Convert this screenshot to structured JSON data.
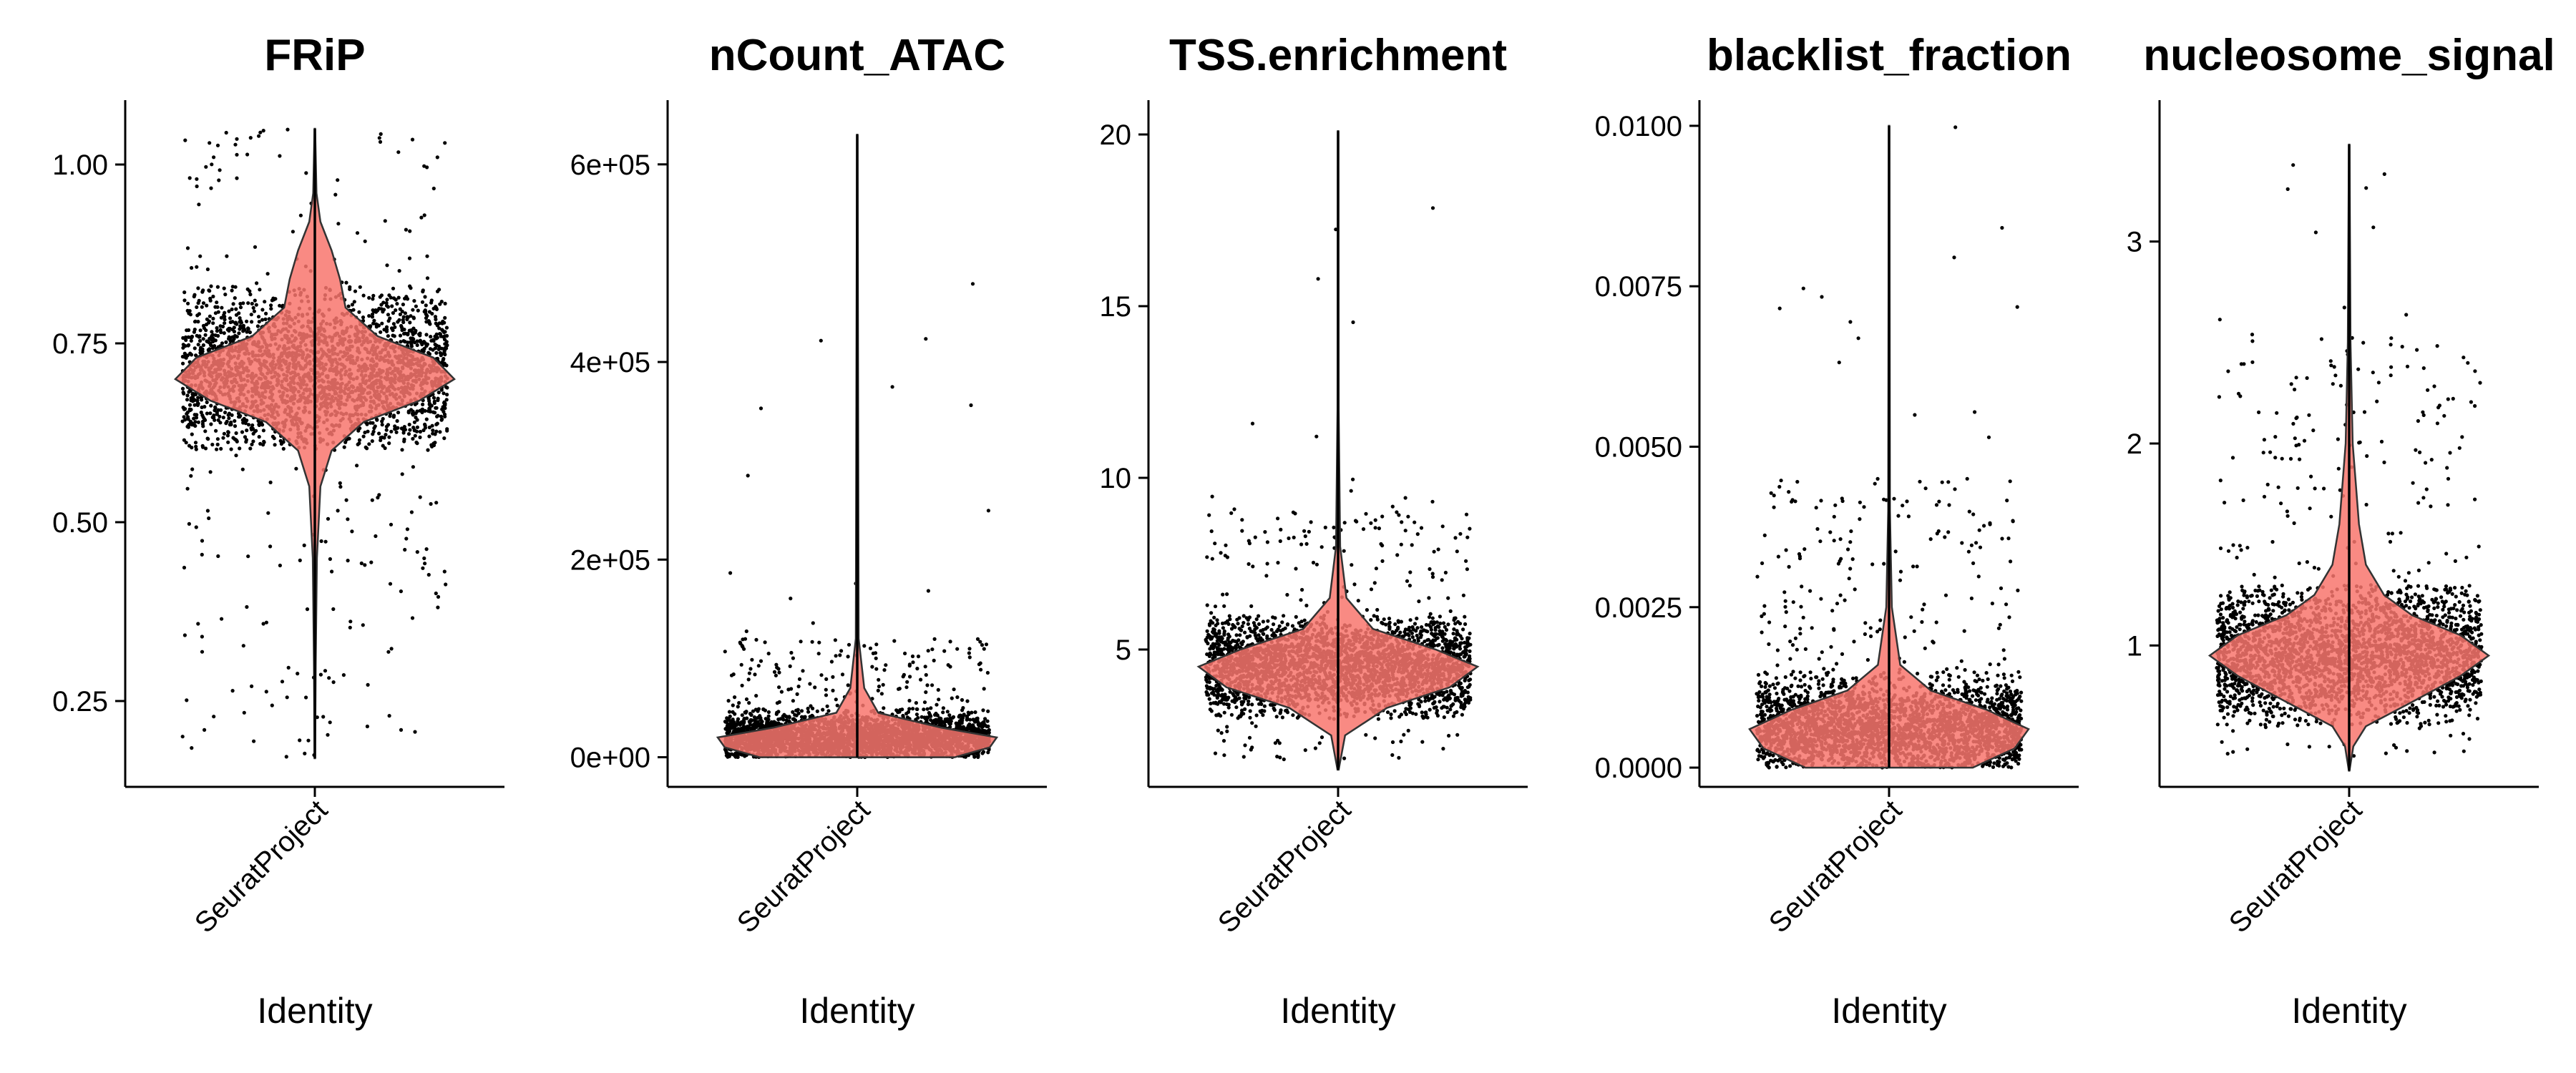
{
  "figure": {
    "background": "#ffffff",
    "violin_color": "#f8766d"
  },
  "chart_data": [
    {
      "type": "violin",
      "title": "FRiP",
      "xlabel": "Identity",
      "categories": [
        "SeuratProject"
      ],
      "ylim": [
        0.13,
        1.09
      ],
      "yticks": [
        {
          "value": 0.25,
          "label": "0.25"
        },
        {
          "value": 0.5,
          "label": "0.50"
        },
        {
          "value": 0.75,
          "label": "0.75"
        },
        {
          "value": 1.0,
          "label": "1.00"
        }
      ],
      "distribution": {
        "min": 0.17,
        "max": 1.05,
        "mode": 0.71,
        "core_low": 0.6,
        "core_high": 0.83,
        "tail_low": 0.17,
        "tail_high": 1.03
      },
      "violin_profile": [
        [
          0.17,
          0.002
        ],
        [
          0.3,
          0.006
        ],
        [
          0.45,
          0.015
        ],
        [
          0.55,
          0.04
        ],
        [
          0.6,
          0.12
        ],
        [
          0.64,
          0.35
        ],
        [
          0.67,
          0.75
        ],
        [
          0.7,
          1.0
        ],
        [
          0.73,
          0.85
        ],
        [
          0.76,
          0.45
        ],
        [
          0.8,
          0.22
        ],
        [
          0.84,
          0.18
        ],
        [
          0.88,
          0.12
        ],
        [
          0.92,
          0.04
        ],
        [
          0.96,
          0.012
        ],
        [
          1.05,
          0.002
        ]
      ]
    },
    {
      "type": "violin",
      "title": "nCount_ATAC",
      "xlabel": "Identity",
      "categories": [
        "SeuratProject"
      ],
      "ylim": [
        -30000,
        665000
      ],
      "yticks": [
        {
          "value": 0,
          "label": "0e+00"
        },
        {
          "value": 200000,
          "label": "2e+05"
        },
        {
          "value": 400000,
          "label": "4e+05"
        },
        {
          "value": 600000,
          "label": "6e+05"
        }
      ],
      "distribution": {
        "min": 0,
        "max": 630000,
        "mode": 20000,
        "core_low": 0,
        "core_high": 50000,
        "tail_low": 0,
        "tail_high": 120000
      },
      "violin_profile": [
        [
          0,
          0.7
        ],
        [
          10000,
          0.95
        ],
        [
          20000,
          1.0
        ],
        [
          30000,
          0.6
        ],
        [
          45000,
          0.15
        ],
        [
          70000,
          0.05
        ],
        [
          120000,
          0.01
        ],
        [
          630000,
          0.002
        ]
      ]
    },
    {
      "type": "violin",
      "title": "TSS.enrichment",
      "xlabel": "Identity",
      "categories": [
        "SeuratProject"
      ],
      "ylim": [
        1.0,
        21.0
      ],
      "yticks": [
        {
          "value": 5,
          "label": "5"
        },
        {
          "value": 10,
          "label": "10"
        },
        {
          "value": 15,
          "label": "15"
        },
        {
          "value": 20,
          "label": "20"
        }
      ],
      "distribution": {
        "min": 1.5,
        "max": 20.1,
        "mode": 4.5,
        "core_low": 3.0,
        "core_high": 6.0,
        "tail_low": 1.8,
        "tail_high": 9.0
      },
      "violin_profile": [
        [
          1.5,
          0.004
        ],
        [
          2.5,
          0.05
        ],
        [
          3.3,
          0.35
        ],
        [
          3.9,
          0.8
        ],
        [
          4.5,
          1.0
        ],
        [
          5.0,
          0.7
        ],
        [
          5.6,
          0.25
        ],
        [
          6.5,
          0.06
        ],
        [
          8,
          0.015
        ],
        [
          12,
          0.004
        ],
        [
          20.1,
          0.002
        ]
      ]
    },
    {
      "type": "violin",
      "title": "blacklist_fraction",
      "xlabel": "Identity",
      "categories": [
        "SeuratProject"
      ],
      "ylim": [
        -0.0003,
        0.0104
      ],
      "yticks": [
        {
          "value": 0,
          "label": "0.0000"
        },
        {
          "value": 0.0025,
          "label": "0.0025"
        },
        {
          "value": 0.005,
          "label": "0.0050"
        },
        {
          "value": 0.0075,
          "label": "0.0075"
        },
        {
          "value": 0.01,
          "label": "0.0100"
        }
      ],
      "distribution": {
        "min": 0,
        "max": 0.01,
        "mode": 0.0006,
        "core_low": 0,
        "core_high": 0.0015,
        "tail_low": 0,
        "tail_high": 0.0045
      },
      "violin_profile": [
        [
          0,
          0.6
        ],
        [
          0.0003,
          0.9
        ],
        [
          0.0006,
          1.0
        ],
        [
          0.0009,
          0.7
        ],
        [
          0.0012,
          0.3
        ],
        [
          0.0016,
          0.08
        ],
        [
          0.0025,
          0.02
        ],
        [
          0.004,
          0.006
        ],
        [
          0.01,
          0.002
        ]
      ]
    },
    {
      "type": "violin",
      "title": "nucleosome_signal",
      "xlabel": "Identity",
      "categories": [
        "SeuratProject"
      ],
      "ylim": [
        0.3,
        3.7
      ],
      "yticks": [
        {
          "value": 1,
          "label": "1"
        },
        {
          "value": 2,
          "label": "2"
        },
        {
          "value": 3,
          "label": "3"
        }
      ],
      "distribution": {
        "min": 0.38,
        "max": 3.48,
        "mode": 0.95,
        "core_low": 0.6,
        "core_high": 1.3,
        "tail_low": 0.45,
        "tail_high": 2.5
      },
      "violin_profile": [
        [
          0.38,
          0.002
        ],
        [
          0.5,
          0.03
        ],
        [
          0.6,
          0.12
        ],
        [
          0.72,
          0.45
        ],
        [
          0.85,
          0.8
        ],
        [
          0.95,
          1.0
        ],
        [
          1.05,
          0.8
        ],
        [
          1.15,
          0.45
        ],
        [
          1.25,
          0.25
        ],
        [
          1.4,
          0.12
        ],
        [
          1.6,
          0.07
        ],
        [
          2.0,
          0.025
        ],
        [
          2.5,
          0.01
        ],
        [
          3.48,
          0.002
        ]
      ]
    }
  ]
}
